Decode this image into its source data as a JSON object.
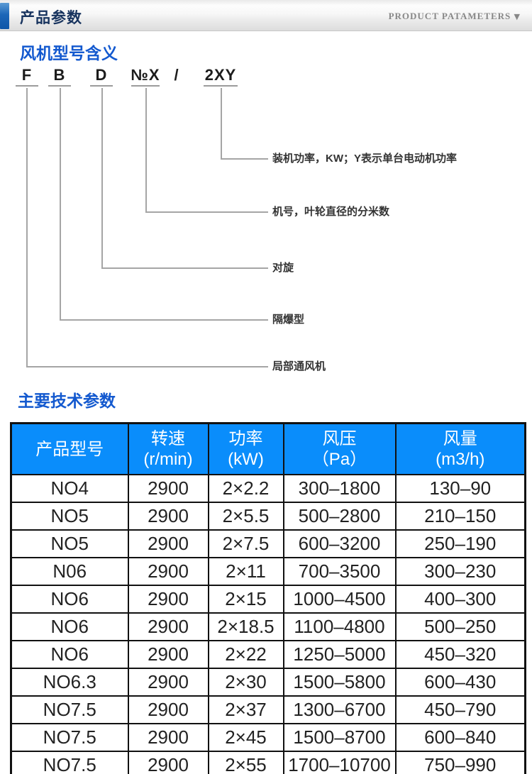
{
  "header": {
    "title": "产品参数",
    "subtitle": "PRODUCT PATAMETERS",
    "dropdown_icon": "▼"
  },
  "section_model": {
    "title": "风机型号含义"
  },
  "diagram": {
    "codes": [
      "F",
      "B",
      "D",
      "№X",
      "/",
      "2XY"
    ],
    "items": [
      {
        "code": "F",
        "label": "局部通风机"
      },
      {
        "code": "B",
        "label": "隔爆型"
      },
      {
        "code": "D",
        "label": "对旋"
      },
      {
        "code": "№X",
        "label": "机号，叶轮直径的分米数"
      },
      {
        "code": "2XY",
        "label": "装机功率，KW；Y表示单台电动机功率"
      }
    ]
  },
  "section_specs": {
    "title": "主要技术参数"
  },
  "table": {
    "headers": [
      {
        "line1": "产品型号",
        "line2": ""
      },
      {
        "line1": "转速",
        "line2": "(r/min)"
      },
      {
        "line1": "功率",
        "line2": "(kW)"
      },
      {
        "line1": "风压",
        "line2": "（Pa）"
      },
      {
        "line1": "风量",
        "line2": "(m3/h)"
      }
    ],
    "rows": [
      [
        "NO4",
        "2900",
        "2×2.2",
        "300–1800",
        "130–90"
      ],
      [
        "NO5",
        "2900",
        "2×5.5",
        "500–2800",
        "210–150"
      ],
      [
        "NO5",
        "2900",
        "2×7.5",
        "600–3200",
        "250–190"
      ],
      [
        "N06",
        "2900",
        "2×11",
        "700–3500",
        "300–230"
      ],
      [
        "NO6",
        "2900",
        "2×15",
        "1000–4500",
        "400–300"
      ],
      [
        "NO6",
        "2900",
        "2×18.5",
        "1100–4800",
        "500–250"
      ],
      [
        "NO6",
        "2900",
        "2×22",
        "1250–5000",
        "450–320"
      ],
      [
        "NO6.3",
        "2900",
        "2×30",
        "1500–5800",
        "600–430"
      ],
      [
        "NO7.5",
        "2900",
        "2×37",
        "1300–6700",
        "450–790"
      ],
      [
        "NO7.5",
        "2900",
        "2×45",
        "1500–8700",
        "600–840"
      ],
      [
        "NO7.5",
        "2900",
        "2×55",
        "1700–10700",
        "750–990"
      ]
    ]
  },
  "colors": {
    "table_header_bg": "#0a8dfb",
    "heading_blue": "#1359cf",
    "title_navy": "#17335e",
    "stub_blue": "#1c66b8",
    "line_gray": "#a5a5a5"
  }
}
